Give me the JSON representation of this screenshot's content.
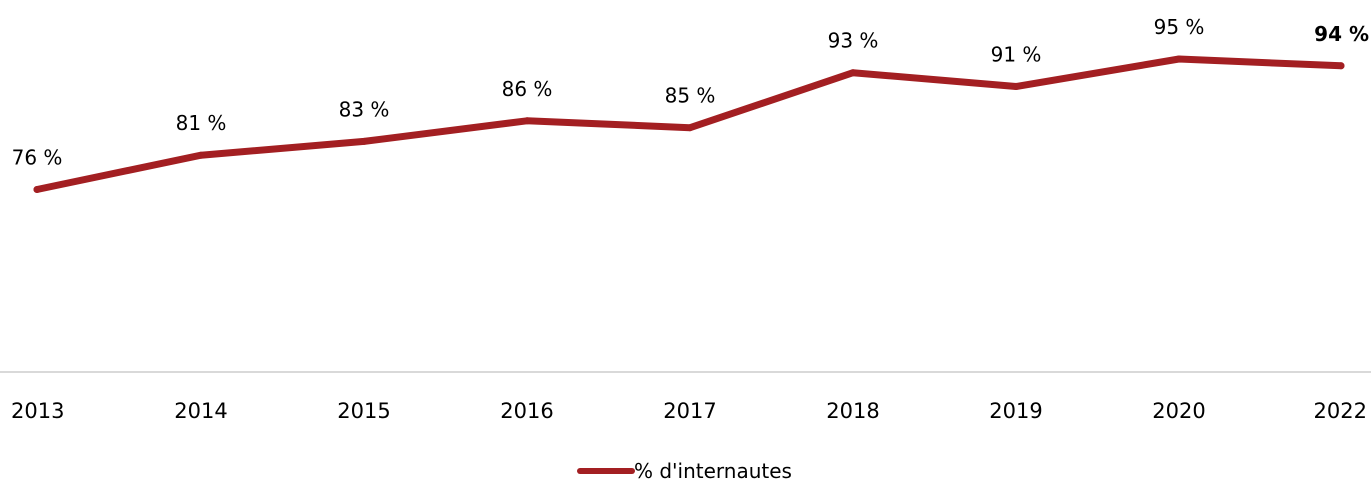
{
  "chart_data": {
    "type": "line",
    "categories": [
      "2013",
      "2014",
      "2015",
      "2016",
      "2017",
      "2018",
      "2019",
      "2020",
      "2022"
    ],
    "series": [
      {
        "name": "% d'internautes",
        "values": [
          76,
          81,
          83,
          86,
          85,
          93,
          91,
          95,
          94
        ],
        "labels": [
          "76 %",
          "81 %",
          "83 %",
          "86 %",
          "85 %",
          "93 %",
          "91 %",
          "95 %",
          "94 %"
        ],
        "color": "#a31f22",
        "emphasized_label_index": 8
      }
    ],
    "title": "",
    "xlabel": "",
    "ylabel": "",
    "ylim": [
      50,
      100
    ],
    "grid": false,
    "legend_position": "bottom"
  },
  "colors": {
    "series": "#a31f22",
    "axis": "#d9d9d9",
    "text": "#000000"
  }
}
